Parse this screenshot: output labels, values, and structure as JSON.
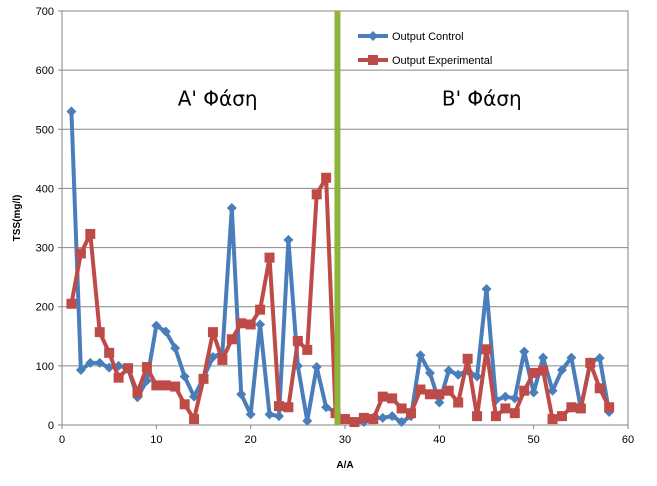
{
  "chart_data": {
    "type": "line",
    "xlabel": "A/A",
    "ylabel": "TSS(mg/l)",
    "xlim": [
      0,
      60
    ],
    "ylim": [
      0,
      700
    ],
    "xticks": [
      0,
      10,
      20,
      30,
      40,
      50,
      60
    ],
    "yticks": [
      0,
      100,
      200,
      300,
      400,
      500,
      600,
      700
    ],
    "grid": "horizontal",
    "legend": "top-right",
    "divider": {
      "x": 29.2,
      "color": "#8DB53A"
    },
    "annotations": [
      {
        "text": "Α' Φάση",
        "x": 16.5,
        "y": 540
      },
      {
        "text": "Β' Φάση",
        "x": 44.5,
        "y": 540
      }
    ],
    "x": [
      1,
      2,
      3,
      4,
      5,
      6,
      7,
      8,
      9,
      10,
      11,
      12,
      13,
      14,
      15,
      16,
      17,
      18,
      19,
      20,
      21,
      22,
      23,
      24,
      25,
      26,
      27,
      28,
      29,
      30,
      31,
      32,
      33,
      34,
      35,
      36,
      37,
      38,
      39,
      40,
      41,
      42,
      43,
      44,
      45,
      46,
      47,
      48,
      49,
      50,
      51,
      52,
      53,
      54,
      55,
      56,
      57,
      58
    ],
    "series": [
      {
        "name": "Output Control",
        "color": "#4A7EBB",
        "marker": "diamond",
        "values": [
          530,
          93,
          105,
          105,
          97,
          100,
          96,
          47,
          75,
          168,
          158,
          130,
          82,
          48,
          80,
          115,
          122,
          367,
          52,
          18,
          170,
          18,
          15,
          313,
          100,
          7,
          98,
          30,
          22,
          10,
          5,
          5,
          12,
          12,
          15,
          5,
          15,
          118,
          88,
          38,
          92,
          85,
          92,
          82,
          230,
          42,
          48,
          45,
          124,
          55,
          114,
          58,
          93,
          114,
          28,
          106,
          113,
          22
        ]
      },
      {
        "name": "Output Experimental",
        "color": "#BE4B48",
        "marker": "square",
        "values": [
          205,
          290,
          323,
          157,
          122,
          80,
          96,
          55,
          98,
          67,
          67,
          65,
          35,
          10,
          78,
          157,
          110,
          145,
          172,
          170,
          195,
          283,
          32,
          30,
          142,
          127,
          390,
          418,
          20,
          10,
          5,
          12,
          10,
          48,
          45,
          28,
          20,
          60,
          52,
          52,
          58,
          38,
          112,
          15,
          128,
          15,
          28,
          20,
          58,
          88,
          92,
          10,
          15,
          30,
          28,
          105,
          62,
          30
        ]
      }
    ]
  }
}
